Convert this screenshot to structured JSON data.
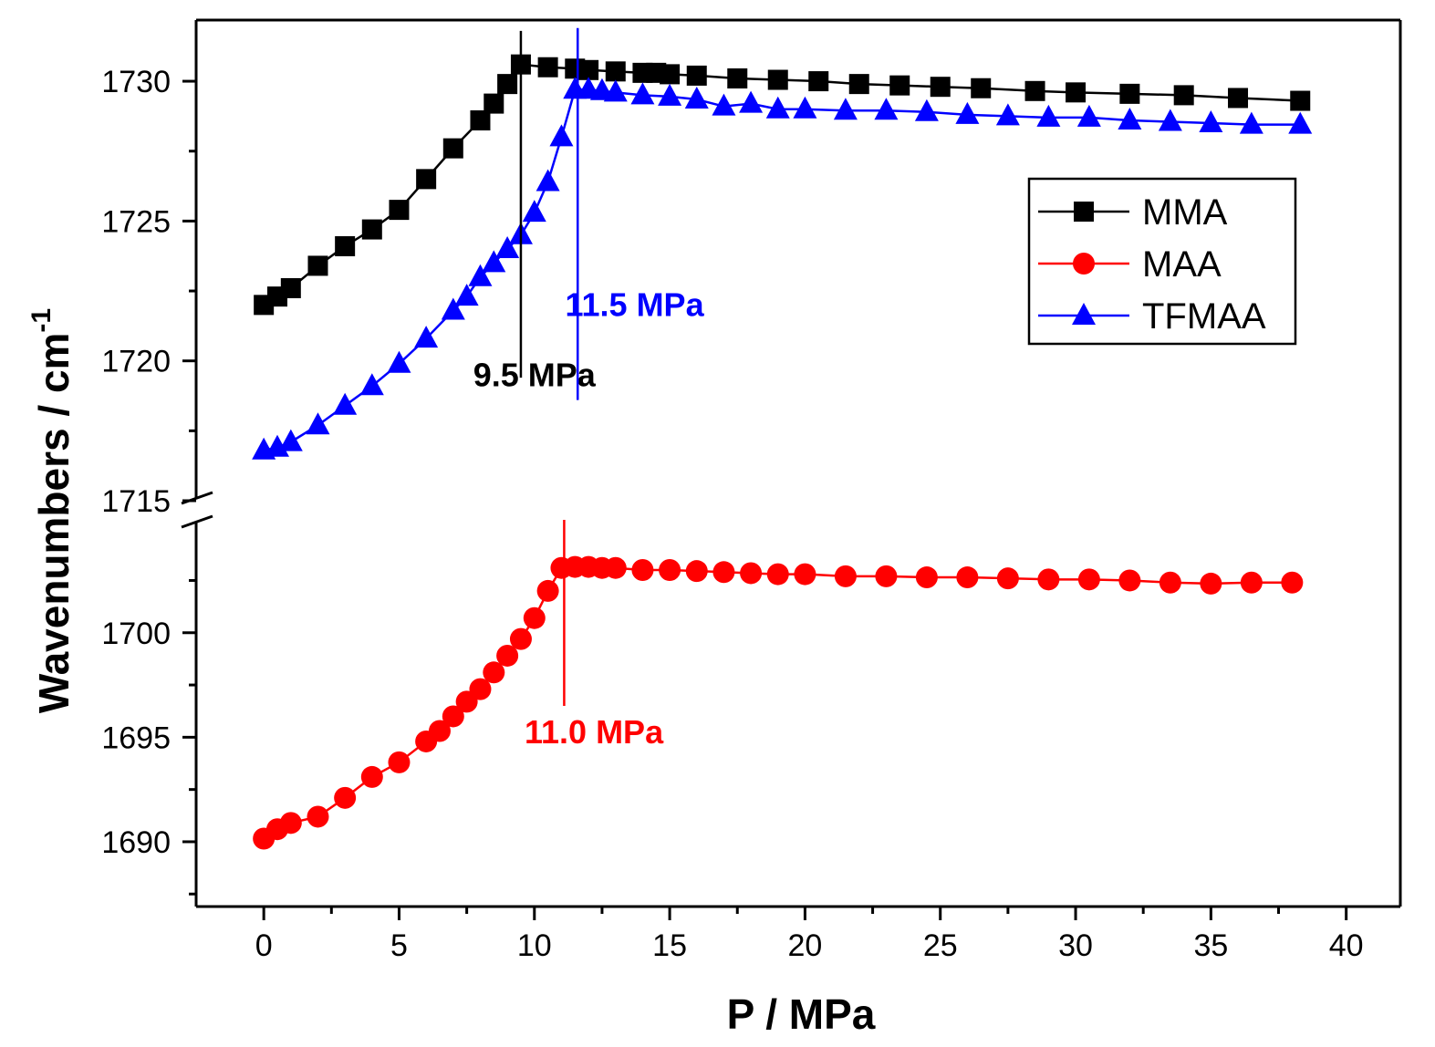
{
  "chart_data": {
    "type": "line",
    "xlabel": "P / MPa",
    "ylabel_main": "Wavenumbers / cm",
    "ylabel_sup": "-1",
    "xlim": [
      -2.5,
      42
    ],
    "x_ticks": [
      0,
      5,
      10,
      15,
      20,
      25,
      30,
      35,
      40
    ],
    "y_ticks_upper": [
      1715,
      1720,
      1725,
      1730
    ],
    "y_ticks_lower": [
      1690,
      1695,
      1700
    ],
    "ylim_upper": [
      1715,
      1731.6
    ],
    "ylim_lower": [
      1686.9,
      1705.4
    ],
    "legend_position": "top-right",
    "series": [
      {
        "name": "MMA",
        "color": "#000000",
        "marker": "square",
        "axis": "upper",
        "x": [
          0,
          0.5,
          1,
          2,
          3,
          4,
          5,
          6,
          7,
          8,
          8.5,
          9,
          9.5,
          10.5,
          11.5,
          12,
          13,
          14,
          14.5,
          15,
          16,
          17.5,
          19,
          20.5,
          22,
          23.5,
          25,
          26.5,
          28.5,
          30,
          32,
          34,
          36,
          38.3
        ],
        "values": [
          1722.0,
          1722.3,
          1722.6,
          1723.4,
          1724.1,
          1724.7,
          1725.4,
          1726.5,
          1727.6,
          1728.6,
          1729.2,
          1729.9,
          1730.6,
          1730.5,
          1730.45,
          1730.4,
          1730.35,
          1730.3,
          1730.3,
          1730.25,
          1730.2,
          1730.1,
          1730.05,
          1730.0,
          1729.9,
          1729.85,
          1729.8,
          1729.75,
          1729.65,
          1729.6,
          1729.55,
          1729.5,
          1729.4,
          1729.3
        ]
      },
      {
        "name": "MAA",
        "color": "#ff0000",
        "marker": "circle",
        "axis": "lower",
        "x": [
          0,
          0.5,
          1,
          2,
          3,
          4,
          5,
          6,
          6.5,
          7,
          7.5,
          8,
          8.5,
          9,
          9.5,
          10,
          10.5,
          11,
          11.5,
          12,
          12.5,
          13,
          14,
          15,
          16,
          17,
          18,
          19,
          20,
          21.5,
          23,
          24.5,
          26,
          27.5,
          29,
          30.5,
          32,
          33.5,
          35,
          36.5,
          38
        ],
        "values": [
          1690.15,
          1690.6,
          1690.9,
          1691.2,
          1692.1,
          1693.1,
          1693.8,
          1694.8,
          1695.3,
          1696.0,
          1696.7,
          1697.3,
          1698.1,
          1698.9,
          1699.7,
          1700.7,
          1702.0,
          1703.1,
          1703.15,
          1703.15,
          1703.1,
          1703.1,
          1703.0,
          1703.0,
          1702.95,
          1702.9,
          1702.85,
          1702.8,
          1702.8,
          1702.7,
          1702.7,
          1702.65,
          1702.65,
          1702.6,
          1702.55,
          1702.55,
          1702.5,
          1702.4,
          1702.35,
          1702.4,
          1702.4
        ]
      },
      {
        "name": "TFMAA",
        "color": "#0000ff",
        "marker": "triangle",
        "axis": "upper",
        "x": [
          0,
          0.5,
          1,
          2,
          3,
          4,
          5,
          6,
          7,
          7.5,
          8,
          8.5,
          9,
          9.5,
          10,
          10.5,
          11,
          11.5,
          12,
          12.5,
          13,
          14,
          15,
          16,
          17,
          18,
          19,
          20,
          21.5,
          23,
          24.5,
          26,
          27.5,
          29,
          30.5,
          32,
          33.5,
          35,
          36.5,
          38.3
        ],
        "values": [
          1716.8,
          1716.9,
          1717.1,
          1717.7,
          1718.4,
          1719.1,
          1719.9,
          1720.8,
          1721.8,
          1722.3,
          1723.0,
          1723.5,
          1724.0,
          1724.5,
          1725.3,
          1726.4,
          1728.0,
          1729.7,
          1729.7,
          1729.65,
          1729.6,
          1729.5,
          1729.45,
          1729.35,
          1729.1,
          1729.2,
          1729.0,
          1729.0,
          1728.95,
          1728.95,
          1728.9,
          1728.8,
          1728.75,
          1728.7,
          1728.7,
          1728.6,
          1728.55,
          1728.5,
          1728.45,
          1728.45
        ]
      }
    ],
    "annotations": [
      {
        "text": "9.5 MPa",
        "color": "#000000",
        "line_x": 9.5,
        "line_axis": "upper",
        "line_from": 1719.4,
        "line_to": 1731.8,
        "label_x": 10,
        "label_y": 1719.1,
        "label_axis": "upper"
      },
      {
        "text": "11.5 MPa",
        "color": "#0000ff",
        "line_x": 11.6,
        "line_axis": "upper",
        "line_from": 1718.6,
        "line_to": 1731.9,
        "label_x": 13.7,
        "label_y": 1721.6,
        "label_axis": "upper"
      },
      {
        "text": "11.0 MPa",
        "color": "#ff0000",
        "line_x": 11.1,
        "line_axis": "lower",
        "line_from": 1696.5,
        "line_to": 1705.4,
        "label_x": 12.2,
        "label_y": 1694.7,
        "label_axis": "lower"
      }
    ]
  }
}
